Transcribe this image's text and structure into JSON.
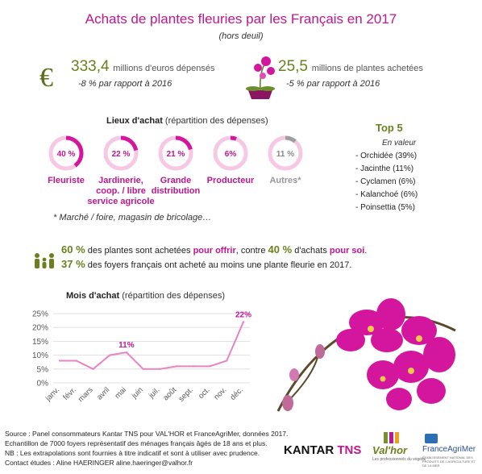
{
  "header": {
    "title": "Achats de plantes fleuries par les Français en 2017",
    "subtitle": "(hors deuil)"
  },
  "key_figures": {
    "euro_symbol": "€",
    "spend_value": "333,4",
    "spend_label": "millions d'euros dépensés",
    "spend_change": "-8 % par rapport à 2016",
    "plants_value": "25,5",
    "plants_label": "millions de plantes achetées",
    "plants_change": "-5 % par rapport à 2016"
  },
  "lieux": {
    "heading_bold": "Lieux d'achat",
    "heading_rest": "(répartition des dépenses)",
    "items": [
      {
        "pct": "40 %",
        "value": 40,
        "label": [
          "Fleuriste"
        ],
        "color": "#d4169e"
      },
      {
        "pct": "22 %",
        "value": 22,
        "label": [
          "Jardinerie,",
          "coop. / libre",
          "service agricole"
        ],
        "color": "#d4169e"
      },
      {
        "pct": "21 %",
        "value": 21,
        "label": [
          "Grande",
          "distribution"
        ],
        "color": "#d4169e"
      },
      {
        "pct": "6%",
        "value": 6,
        "label": [
          "Producteur"
        ],
        "color": "#d4169e"
      },
      {
        "pct": "11 %",
        "value": 11,
        "label": [
          "Autres*"
        ],
        "color": "#9e9e9e"
      }
    ],
    "footnote": "* Marché / foire, magasin de bricolage…"
  },
  "top5": {
    "title": "Top 5",
    "subtitle": "En valeur",
    "items": [
      "- Orchidée (39%)",
      "- Jacinthe (11%)",
      "- Cyclamen (6%)",
      "- Kalanchoé (6%)",
      "- Poinsettia (5%)"
    ]
  },
  "stats": {
    "line1_pct1": "60 %",
    "line1_a": "des plantes sont achetées",
    "line1_offrir": "pour offrir",
    "line1_b": ", contre",
    "line1_pct2": "40 %",
    "line1_c": "d'achats",
    "line1_soi": "pour soi",
    "line1_end": ".",
    "line2_pct": "37 %",
    "line2_text": "des foyers français ont acheté au moins une plante fleurie en 2017."
  },
  "chart_data": {
    "type": "line",
    "title_bold": "Mois d'achat",
    "title_rest": "(répartition des dépenses)",
    "categories": [
      "janv.",
      "févr.",
      "mars",
      "avril",
      "mai",
      "juin",
      "juil.",
      "août",
      "sept.",
      "oct.",
      "nov.",
      "déc."
    ],
    "values": [
      8,
      8,
      5,
      10,
      11,
      5,
      5,
      6,
      6,
      6,
      8,
      22
    ],
    "yticks": [
      "0%",
      "5%",
      "10%",
      "15%",
      "20%",
      "25%"
    ],
    "ylim": [
      0,
      25
    ],
    "annotations": [
      {
        "category": "mai",
        "label": "11%"
      },
      {
        "category": "déc.",
        "label": "22%"
      }
    ],
    "line_color": "#e884c6",
    "grid": true
  },
  "footer": {
    "lines": [
      "Source : Panel consommateurs Kantar TNS pour VAL'HOR et FranceAgriMer, données 2017.",
      "Echantillon de 7000 foyers représentatif des ménages français âgés de 18 ans et plus.",
      "NB : Les extrapolations sont fournies à titre indicatif et sont à utiliser avec prudence.",
      "Contact études : Aline HAERINGER aline.haeringer@valhor.fr"
    ]
  },
  "logos": {
    "kantar": "KANTAR",
    "tns": "TNS",
    "valhor": "Val'hor",
    "valhor_sub": "Les professionnels du végétal",
    "franceagrimer": "FranceAgriMer",
    "franceagrimer_sub": "ÉTABLISSEMENT NATIONAL DES PRODUITS DE L'AGRICULTURE ET DE LA MER"
  }
}
